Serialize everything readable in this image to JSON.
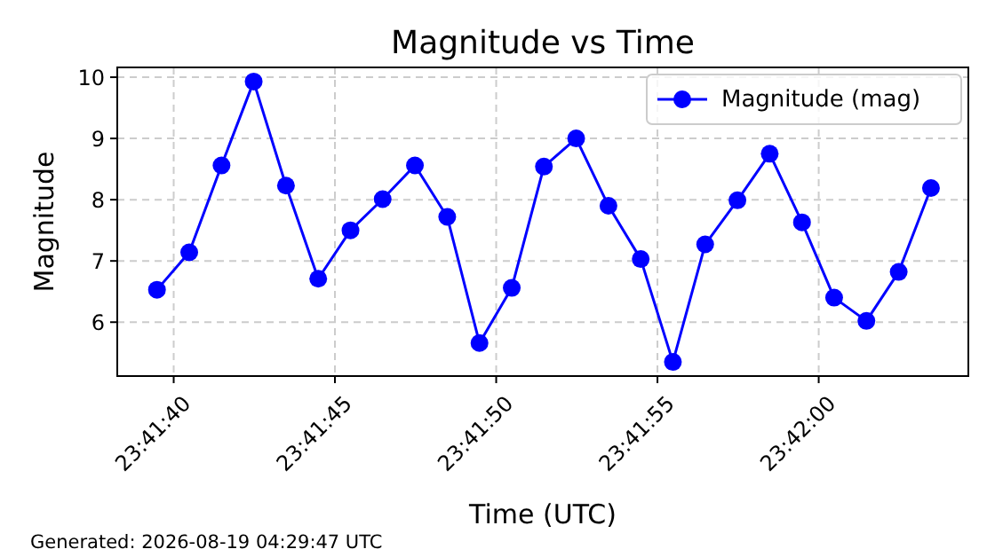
{
  "chart_data": {
    "type": "line",
    "title": "Magnitude vs Time",
    "xlabel": "Time (UTC)",
    "ylabel": "Magnitude",
    "annotations": [
      "Generated: 2026-08-19 04:29:47 UTC"
    ],
    "x": [
      23.6943,
      23.694578,
      23.694856,
      23.695133,
      23.695411,
      23.695689,
      23.695967,
      23.696244,
      23.696522,
      23.6968,
      23.697078,
      23.697356,
      23.697633,
      23.697911,
      23.698189,
      23.698467,
      23.698744,
      23.699022,
      23.6993,
      23.699578,
      23.699856,
      23.700133,
      23.700411,
      23.700689,
      23.700967
    ],
    "series": [
      {
        "name": "Magnitude (mag)",
        "color": "#0000ff",
        "values": [
          6.53,
          7.14,
          8.56,
          9.93,
          8.23,
          6.71,
          7.5,
          8.01,
          8.56,
          7.72,
          5.66,
          6.56,
          8.54,
          9.0,
          7.9,
          7.03,
          5.35,
          7.27,
          7.99,
          8.75,
          7.63,
          6.4,
          6.02,
          6.82,
          8.19
        ]
      }
    ],
    "xlim": [
      23.693958,
      23.701289
    ],
    "xticks": [
      {
        "value": 23.694444,
        "label": "23:41:40"
      },
      {
        "value": 23.695833,
        "label": "23:41:45"
      },
      {
        "value": 23.697222,
        "label": "23:41:50"
      },
      {
        "value": 23.698611,
        "label": "23:41:55"
      },
      {
        "value": 23.7,
        "label": "23:42:00"
      }
    ],
    "ylim": [
      5.12,
      10.16
    ],
    "yticks": [
      6,
      7,
      8,
      9,
      10
    ],
    "grid": true,
    "legend": "top right",
    "marker": "circle",
    "line_style": "solid"
  }
}
